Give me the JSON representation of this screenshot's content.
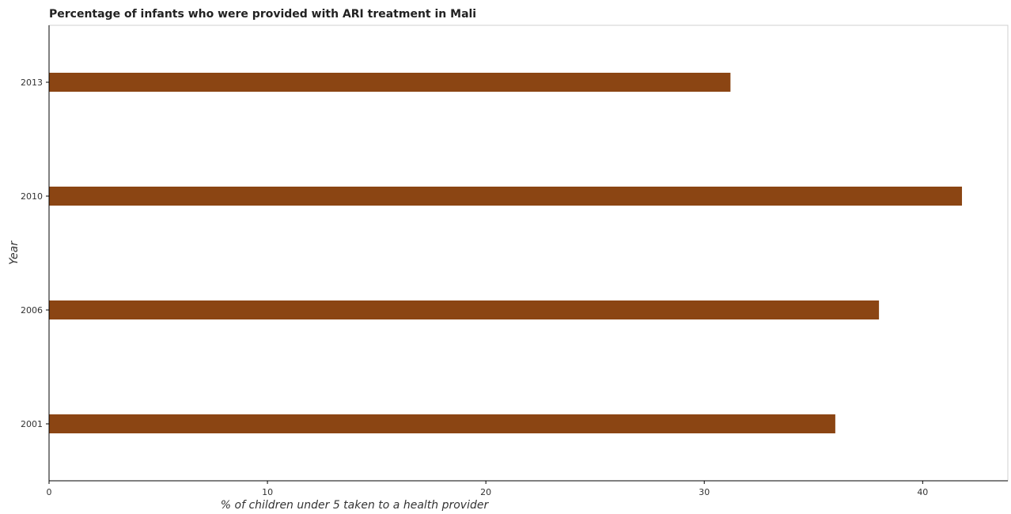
{
  "chart_data": {
    "type": "bar",
    "orientation": "horizontal",
    "title": "Percentage of infants who were provided with ARI treatment in Mali",
    "xlabel": "% of children under 5 taken to a health provider",
    "ylabel": "Year",
    "categories": [
      "2001",
      "2006",
      "2010",
      "2013"
    ],
    "values": [
      36.0,
      38.0,
      41.8,
      31.2
    ],
    "xlim": [
      0,
      43.9
    ],
    "xticks": [
      "0",
      "10",
      "20",
      "30",
      "40"
    ],
    "grid": false,
    "legend": "none",
    "bar_color": "#8b4513"
  }
}
